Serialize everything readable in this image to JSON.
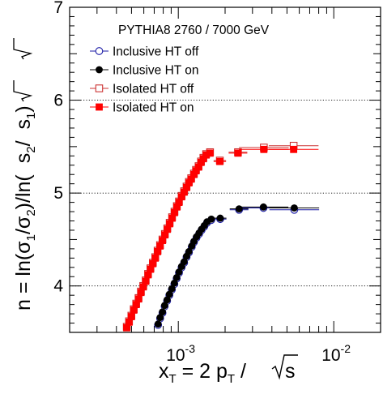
{
  "chart_data": {
    "type": "scatter",
    "title": "",
    "legend": {
      "title": "PYTHIA8 2760 / 7000 GeV",
      "placement": "top-left",
      "entries": [
        "Inclusive HT off",
        "Inclusive HT on",
        "Isolated HT off",
        "Isolated HT on"
      ]
    },
    "xlabel": {
      "main": "x",
      "sub": "T",
      "rest": " = 2 p",
      "sub2": "T",
      "rest2": " / ",
      "sqrt_arg": "s"
    },
    "ylabel": {
      "main": "n = ln(σ",
      "s1": "1",
      "m2": "/σ",
      "s2": "2",
      "m3": ")/ln(",
      "sq1": "s",
      "ss2": "2",
      "m4": "/",
      "sq2": "s",
      "ss3": "1",
      "m5": ")"
    },
    "x_scale": "log",
    "xlim": [
      0.0002,
      0.02
    ],
    "ylim": [
      3.5,
      7
    ],
    "x_ticks": [
      {
        "value": 0.001,
        "base": "10",
        "exp": "-3"
      },
      {
        "value": 0.01,
        "base": "10",
        "exp": "-2"
      }
    ],
    "y_ticks": [
      {
        "value": 4,
        "label": "4"
      },
      {
        "value": 5,
        "label": "5"
      },
      {
        "value": 6,
        "label": "6"
      },
      {
        "value": 7,
        "label": "7"
      }
    ],
    "grid": {
      "horizontal": [
        4,
        5,
        6
      ],
      "style": "dotted"
    },
    "series": [
      {
        "name": "Inclusive HT off",
        "marker": "open-circle",
        "color": "#1a1aa6",
        "x": [
          0.000741,
          0.000764,
          0.000791,
          0.000817,
          0.000847,
          0.000876,
          0.000909,
          0.000943,
          0.000976,
          0.00101,
          0.00105,
          0.00109,
          0.00113,
          0.00117,
          0.00122,
          0.00126,
          0.00131,
          0.00136,
          0.00141,
          0.00147,
          0.00153,
          0.00163,
          0.00186,
          0.00246,
          0.00353,
          0.00557
        ],
        "y": [
          3.58,
          3.65,
          3.71,
          3.78,
          3.84,
          3.9,
          3.96,
          4.02,
          4.08,
          4.14,
          4.2,
          4.25,
          4.31,
          4.36,
          4.42,
          4.47,
          4.52,
          4.56,
          4.6,
          4.64,
          4.68,
          4.71,
          4.72,
          4.82,
          4.84,
          4.82
        ]
      },
      {
        "name": "Inclusive HT on",
        "marker": "filled-circle",
        "color": "#000000",
        "x": [
          0.000741,
          0.000764,
          0.000791,
          0.000817,
          0.000847,
          0.000876,
          0.000909,
          0.000943,
          0.000976,
          0.00101,
          0.00105,
          0.00109,
          0.00113,
          0.00117,
          0.00122,
          0.00126,
          0.00131,
          0.00136,
          0.00141,
          0.00147,
          0.00153,
          0.00163,
          0.00186,
          0.00246,
          0.00353,
          0.00557
        ],
        "y": [
          3.59,
          3.66,
          3.72,
          3.79,
          3.85,
          3.91,
          3.97,
          4.03,
          4.09,
          4.15,
          4.21,
          4.26,
          4.32,
          4.37,
          4.43,
          4.48,
          4.53,
          4.57,
          4.61,
          4.65,
          4.69,
          4.72,
          4.73,
          4.83,
          4.85,
          4.84
        ]
      },
      {
        "name": "Isolated HT off",
        "marker": "open-square",
        "color": "#cc3333",
        "x": [
          0.000466,
          0.000482,
          0.000499,
          0.000517,
          0.000536,
          0.000555,
          0.000575,
          0.000595,
          0.000617,
          0.000639,
          0.000662,
          0.000686,
          0.000711,
          0.000736,
          0.000763,
          0.000791,
          0.00082,
          0.00085,
          0.00088,
          0.000912,
          0.000945,
          0.000979,
          0.00101,
          0.00105,
          0.00109,
          0.00113,
          0.00117,
          0.00121,
          0.00126,
          0.0013,
          0.00135,
          0.0014,
          0.00145,
          0.00151,
          0.0016,
          0.00185,
          0.00242,
          0.00355,
          0.00552
        ],
        "y": [
          3.56,
          3.62,
          3.68,
          3.75,
          3.81,
          3.87,
          3.94,
          4.0,
          4.06,
          4.13,
          4.19,
          4.25,
          4.31,
          4.38,
          4.44,
          4.5,
          4.56,
          4.62,
          4.68,
          4.74,
          4.8,
          4.86,
          4.91,
          4.97,
          5.02,
          5.07,
          5.12,
          5.16,
          5.21,
          5.25,
          5.29,
          5.34,
          5.38,
          5.42,
          5.44,
          5.35,
          5.44,
          5.49,
          5.51
        ]
      },
      {
        "name": "Isolated HT on",
        "marker": "filled-square",
        "color": "#ff0000",
        "x": [
          0.000466,
          0.000482,
          0.000499,
          0.000517,
          0.000536,
          0.000555,
          0.000575,
          0.000595,
          0.000617,
          0.000639,
          0.000662,
          0.000686,
          0.000711,
          0.000736,
          0.000763,
          0.000791,
          0.00082,
          0.00085,
          0.00088,
          0.000912,
          0.000945,
          0.000979,
          0.00101,
          0.00105,
          0.00109,
          0.00113,
          0.00117,
          0.00121,
          0.00126,
          0.0013,
          0.00135,
          0.0014,
          0.00145,
          0.00151,
          0.0016,
          0.00185,
          0.00242,
          0.00355,
          0.00552
        ],
        "y": [
          3.55,
          3.61,
          3.67,
          3.74,
          3.8,
          3.86,
          3.93,
          3.99,
          4.05,
          4.12,
          4.18,
          4.24,
          4.3,
          4.37,
          4.43,
          4.49,
          4.55,
          4.61,
          4.67,
          4.73,
          4.79,
          4.85,
          4.9,
          4.96,
          5.01,
          5.06,
          5.11,
          5.15,
          5.2,
          5.24,
          5.28,
          5.33,
          5.37,
          5.41,
          5.43,
          5.34,
          5.43,
          5.47,
          5.47
        ]
      }
    ]
  }
}
